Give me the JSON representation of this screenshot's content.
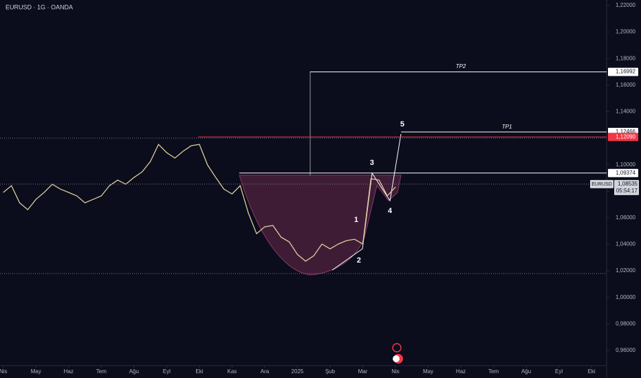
{
  "chart_data": {
    "type": "line",
    "title": "EURUSD · 1G · OANDA",
    "xlim": [
      -0.1,
      18.46
    ],
    "xticks": [
      {
        "value": 0,
        "label": "Nis"
      },
      {
        "value": 1,
        "label": "May"
      },
      {
        "value": 2,
        "label": "Haz"
      },
      {
        "value": 3,
        "label": "Tem"
      },
      {
        "value": 4,
        "label": "Ağu"
      },
      {
        "value": 5,
        "label": "Eyl"
      },
      {
        "value": 6,
        "label": "Eki"
      },
      {
        "value": 7,
        "label": "Kas"
      },
      {
        "value": 8,
        "label": "Ara"
      },
      {
        "value": 9,
        "label": "2025"
      },
      {
        "value": 10,
        "label": "Şub"
      },
      {
        "value": 11,
        "label": "Mar"
      },
      {
        "value": 12,
        "label": "Nis"
      },
      {
        "value": 13,
        "label": "May"
      },
      {
        "value": 14,
        "label": "Haz"
      },
      {
        "value": 15,
        "label": "Tem"
      },
      {
        "value": 16,
        "label": "Ağu"
      },
      {
        "value": 17,
        "label": "Eyl"
      },
      {
        "value": 18,
        "label": "Eki"
      }
    ],
    "ylim": [
      0.9486,
      1.2241
    ],
    "yticks": [
      {
        "value": 0.96,
        "label": "0,96000"
      },
      {
        "value": 0.98,
        "label": "0,98000"
      },
      {
        "value": 1.0,
        "label": "1,00000"
      },
      {
        "value": 1.02,
        "label": "1,02000"
      },
      {
        "value": 1.04,
        "label": "1,04000"
      },
      {
        "value": 1.06,
        "label": "1,06000"
      },
      {
        "value": 1.08,
        "label": "1,08000"
      },
      {
        "value": 1.1,
        "label": "1,10000"
      },
      {
        "value": 1.12,
        "label": "1,12000"
      },
      {
        "value": 1.14,
        "label": "1,14000"
      },
      {
        "value": 1.16,
        "label": "1,16000"
      },
      {
        "value": 1.18,
        "label": "1,18000"
      },
      {
        "value": 1.2,
        "label": "1,20000"
      },
      {
        "value": 1.22,
        "label": "1,22000"
      }
    ],
    "x": [
      0,
      0.25,
      0.5,
      0.75,
      1,
      1.25,
      1.5,
      1.75,
      2,
      2.25,
      2.5,
      2.75,
      3,
      3.25,
      3.5,
      3.75,
      4,
      4.25,
      4.5,
      4.75,
      5,
      5.25,
      5.5,
      5.75,
      6,
      6.25,
      6.5,
      6.75,
      7,
      7.25,
      7.5,
      7.75,
      8,
      8.25,
      8.5,
      8.75,
      9,
      9.25,
      9.5,
      9.75,
      10,
      10.25,
      10.5,
      10.75,
      11,
      11.25,
      11.5,
      11.75,
      12
    ],
    "series": [
      {
        "name": "EURUSD",
        "color": "#d9cf9a",
        "values": [
          1.0791,
          1.0842,
          1.0713,
          1.0661,
          1.0739,
          1.0791,
          1.0853,
          1.0816,
          1.0791,
          1.0765,
          1.0713,
          1.0739,
          1.0765,
          1.0842,
          1.0884,
          1.0853,
          1.0904,
          1.0946,
          1.1024,
          1.1153,
          1.1091,
          1.105,
          1.1101,
          1.1143,
          1.1153,
          1.0998,
          1.0904,
          1.0816,
          1.078,
          1.0842,
          1.0635,
          1.048,
          1.0532,
          1.0542,
          1.0454,
          1.0418,
          1.0324,
          1.0273,
          1.0314,
          1.0402,
          1.0366,
          1.0402,
          1.0428,
          1.0438,
          1.0402,
          1.0894,
          1.0884,
          1.0765,
          1.0832
        ]
      }
    ],
    "levels": [
      {
        "value": 1.16992,
        "label": "1,16992",
        "start": 9.39,
        "color": "#ffffff"
      },
      {
        "value": 1.12466,
        "label": "1,12466",
        "start": 12.17,
        "color": "#ffffff"
      },
      {
        "value": 1.1209,
        "label": "1,12090",
        "start": 5.96,
        "color": "#f23645"
      },
      {
        "value": 1.09374,
        "label": "1,09374",
        "start": 7.22,
        "color": "#ffffff"
      }
    ],
    "dotted_levels": [
      1.12,
      1.018
    ],
    "price_label": {
      "value": 1.08535,
      "label": "1,08535",
      "countdown": "05:54:17",
      "symbol": "EURUSD"
    },
    "annotations": [
      {
        "text": "TP2",
        "x": 14.0,
        "y": 1.1739
      },
      {
        "text": "TP1",
        "x": 15.41,
        "y": 1.1283
      },
      {
        "text": "5",
        "x": 12.21,
        "y": 1.1304
      },
      {
        "text": "3",
        "x": 11.28,
        "y": 1.1013
      },
      {
        "text": "4",
        "x": 11.83,
        "y": 1.0651
      },
      {
        "text": "1",
        "x": 10.8,
        "y": 1.0583
      },
      {
        "text": "2",
        "x": 10.88,
        "y": 1.0278
      }
    ]
  }
}
